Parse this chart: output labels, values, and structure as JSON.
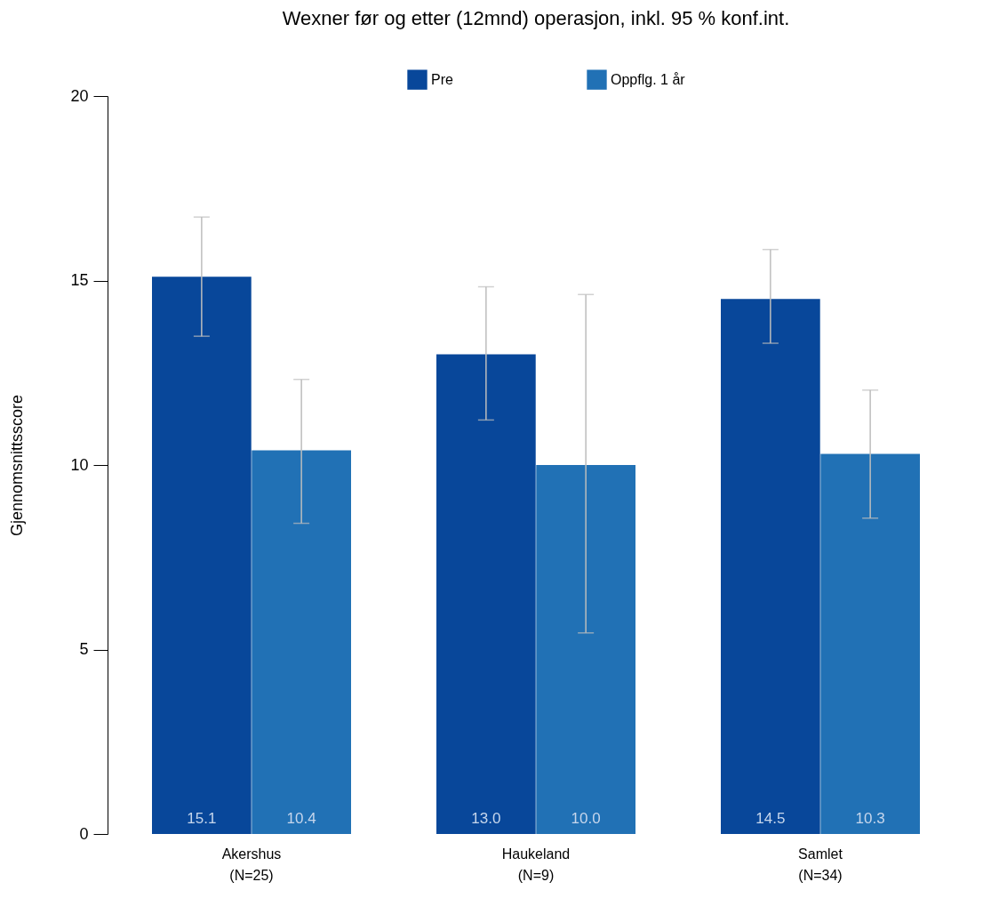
{
  "chart_data": {
    "type": "bar",
    "title": "Wexner før og etter (12mnd) operasjon, inkl. 95 % konf.int.",
    "ylabel": "Gjennomsnittsscore",
    "categories": [
      "Akershus\n(N=25)",
      "Haukeland\n(N=9)",
      "Samlet\n(N=34)"
    ],
    "series": [
      {
        "name": "Pre",
        "color": "#08479a",
        "values": [
          15.1,
          13.0,
          14.5
        ],
        "value_labels": [
          "15.1",
          "13.0",
          "14.5"
        ],
        "errors": [
          [
            13.49,
            16.72
          ],
          [
            11.22,
            14.83
          ],
          [
            13.3,
            15.84
          ]
        ]
      },
      {
        "name": "Oppflg. 1 år",
        "color": "#2171b5",
        "values": [
          10.4,
          10.0,
          10.3
        ],
        "value_labels": [
          "10.4",
          "10.0",
          "10.3"
        ],
        "errors": [
          [
            8.42,
            12.32
          ],
          [
            5.45,
            14.62
          ],
          [
            8.56,
            12.03
          ]
        ]
      }
    ],
    "ylim": [
      0,
      20
    ],
    "yticks": [
      0,
      5,
      10,
      15,
      20
    ],
    "grid": false,
    "legend": "top"
  }
}
